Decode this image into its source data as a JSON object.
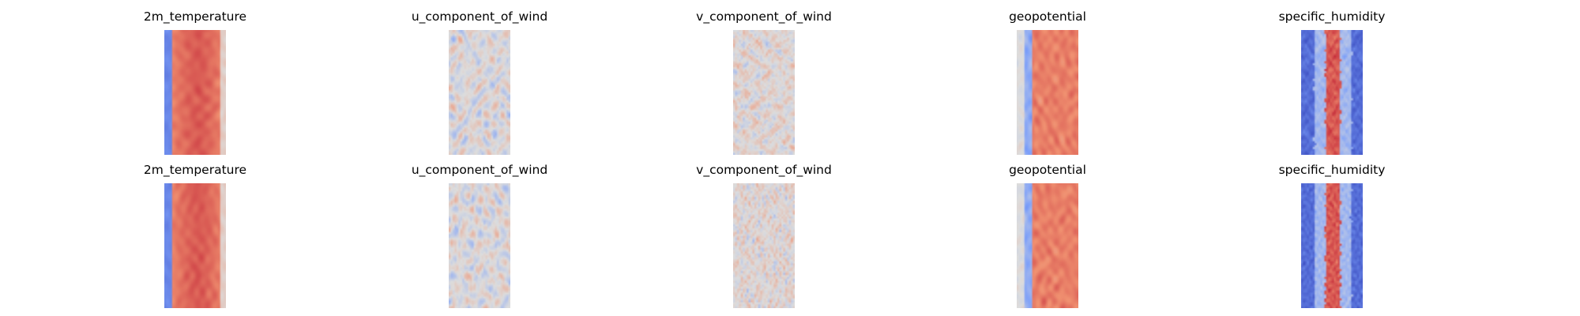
{
  "chart_data": {
    "type": "heatmap",
    "colormap": "coolwarm",
    "colormap_colors": [
      "#3b4cc0",
      "#dddddd",
      "#b40426"
    ],
    "rows": [
      {
        "panels": [
          {
            "title": "2m_temperature",
            "pattern": "temperature"
          },
          {
            "title": "u_component_of_wind",
            "pattern": "u_wind"
          },
          {
            "title": "v_component_of_wind",
            "pattern": "v_wind"
          },
          {
            "title": "geopotential",
            "pattern": "geopotential"
          },
          {
            "title": "specific_humidity",
            "pattern": "humidity"
          }
        ]
      },
      {
        "panels": [
          {
            "title": "2m_temperature",
            "pattern": "temperature"
          },
          {
            "title": "u_component_of_wind",
            "pattern": "u_wind"
          },
          {
            "title": "v_component_of_wind",
            "pattern": "v_wind"
          },
          {
            "title": "geopotential",
            "pattern": "geopotential"
          },
          {
            "title": "specific_humidity",
            "pattern": "humidity"
          }
        ]
      }
    ]
  }
}
